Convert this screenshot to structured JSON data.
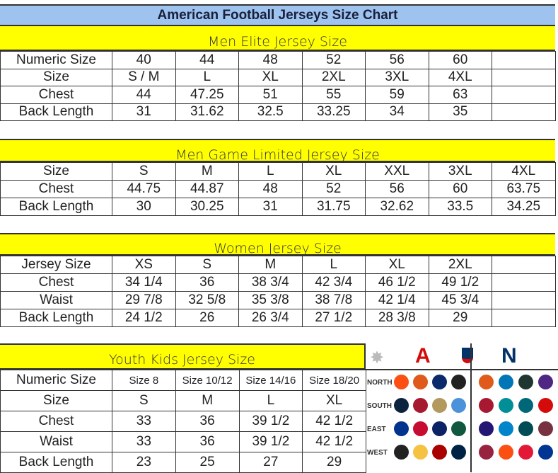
{
  "title": "American Football Jerseys Size Chart",
  "men_elite": {
    "heading": "Men Elite Jersey Size",
    "rows": [
      [
        "Numeric Size",
        "40",
        "44",
        "48",
        "52",
        "56",
        "60",
        ""
      ],
      [
        "Size",
        "S / M",
        "L",
        "XL",
        "2XL",
        "3XL",
        "4XL",
        ""
      ],
      [
        "Chest",
        "44",
        "47.25",
        "51",
        "55",
        "59",
        "63",
        ""
      ],
      [
        "Back Length",
        "31",
        "31.62",
        "32.5",
        "33.25",
        "34",
        "35",
        ""
      ]
    ]
  },
  "men_game": {
    "heading": "Men Game Limited Jersey Size",
    "rows": [
      [
        "Size",
        "S",
        "M",
        "L",
        "XL",
        "XXL",
        "3XL",
        "4XL"
      ],
      [
        "Chest",
        "44.75",
        "44.87",
        "48",
        "52",
        "56",
        "60",
        "63.75"
      ],
      [
        "Back Length",
        "30",
        "30.25",
        "31",
        "31.75",
        "32.62",
        "33.5",
        "34.25"
      ]
    ]
  },
  "women": {
    "heading": "Women Jersey Size",
    "rows": [
      [
        "Jersey Size",
        "XS",
        "S",
        "M",
        "L",
        "XL",
        "2XL",
        ""
      ],
      [
        "Chest",
        "34 1/4",
        "36",
        "38 3/4",
        "42 3/4",
        "46 1/2",
        "49 1/2",
        ""
      ],
      [
        "Waist",
        "29 7/8",
        "32 5/8",
        "35 3/8",
        "38 7/8",
        "42 1/4",
        "45 3/4",
        ""
      ],
      [
        "Back Length",
        "24 1/2",
        "26",
        "26 3/4",
        "27 1/2",
        "28 3/8",
        "29",
        ""
      ]
    ]
  },
  "youth": {
    "heading": "Youth Kids Jersey Size",
    "rows": [
      [
        "Numeric Size",
        "Size 8",
        "Size 10/12",
        "Size 14/16",
        "Size 18/20"
      ],
      [
        "Size",
        "S",
        "M",
        "L",
        "XL"
      ],
      [
        "Chest",
        "33",
        "36",
        "39 1/2",
        "42 1/2"
      ],
      [
        "Waist",
        "33",
        "36",
        "39 1/2",
        "42 1/2"
      ],
      [
        "Back Length",
        "23",
        "25",
        "27",
        "29"
      ]
    ]
  },
  "logos": {
    "afc": "AFC",
    "nfc": "NFC",
    "nfl": "NFL",
    "divisions": [
      "NORTH",
      "SOUTH",
      "EAST",
      "WEST"
    ],
    "afc_colors": [
      [
        "#fb4f14",
        "#e05a1b",
        "#0a2a6b",
        "#222"
      ],
      [
        "#0c2340",
        "#a71930",
        "#b3995d",
        "#4b92db"
      ],
      [
        "#00338d",
        "#c60c30",
        "#0b2265",
        "#125740"
      ],
      [
        "#222",
        "#f5c242",
        "#aa0000",
        "#002244"
      ]
    ],
    "nfc_colors": [
      [
        "#e05a1b",
        "#0076b6",
        "#203731",
        "#4f2683"
      ],
      [
        "#a71930",
        "#008e97",
        "#006778",
        "#d50a0a"
      ],
      [
        "#241773",
        "#0085ca",
        "#004c54",
        "#773141"
      ],
      [
        "#97233f",
        "#fb4f14",
        "#e31837",
        "#003594"
      ]
    ]
  }
}
